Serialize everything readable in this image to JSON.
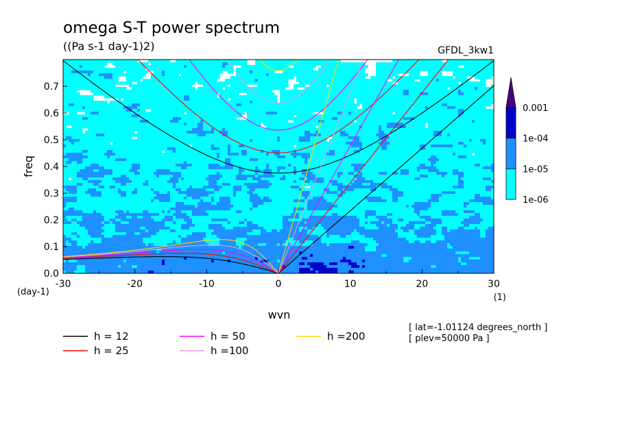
{
  "chart_data": {
    "type": "heatmap",
    "title": "omega S-T power spectrum",
    "subtitle": "((Pa s-1 day-1)2)",
    "dataset_label": "GFDL_3kw1",
    "xlabel": "wvn",
    "ylabel": "freq",
    "x_unit": "(1)",
    "y_unit": "(day-1)",
    "xlim": [
      -30,
      30
    ],
    "ylim": [
      0,
      0.8
    ],
    "x_ticks": [
      -30,
      -20,
      -10,
      0,
      10,
      20,
      30
    ],
    "x_tick_labels": [
      "-30",
      "-20",
      "-10",
      "0",
      "10",
      "20",
      "30"
    ],
    "y_ticks": [
      0,
      0.1,
      0.2,
      0.3,
      0.4,
      0.5,
      0.6,
      0.7
    ],
    "y_tick_labels": [
      "0.0",
      "0.1",
      "0.2",
      "0.3",
      "0.4",
      "0.5",
      "0.6",
      "0.7"
    ],
    "colorbar": {
      "scale": "log",
      "levels": [
        1e-06,
        1e-05,
        0.0001,
        0.001
      ],
      "labels": [
        "1e-06",
        "1e-05",
        "1e-04",
        "0.001"
      ],
      "colors": [
        "#ffffff",
        "#00ffff",
        "#1e90ff",
        "#0000cd",
        "#4b0082"
      ]
    },
    "dispersion_curves": [
      {
        "name": "h = 12",
        "h": 12,
        "color": "#000000"
      },
      {
        "name": "h = 25",
        "h": 25,
        "color": "#ff0000"
      },
      {
        "name": "h = 50",
        "h": 50,
        "color": "#ff00ff"
      },
      {
        "name": "h =100",
        "h": 100,
        "color": "#dda0dd"
      },
      {
        "name": "h =200",
        "h": 200,
        "color": "#ffd700"
      }
    ],
    "annotations": [
      "[ lat=-1.01124 degrees_north ]",
      "[ plev=50000 Pa ]"
    ]
  }
}
